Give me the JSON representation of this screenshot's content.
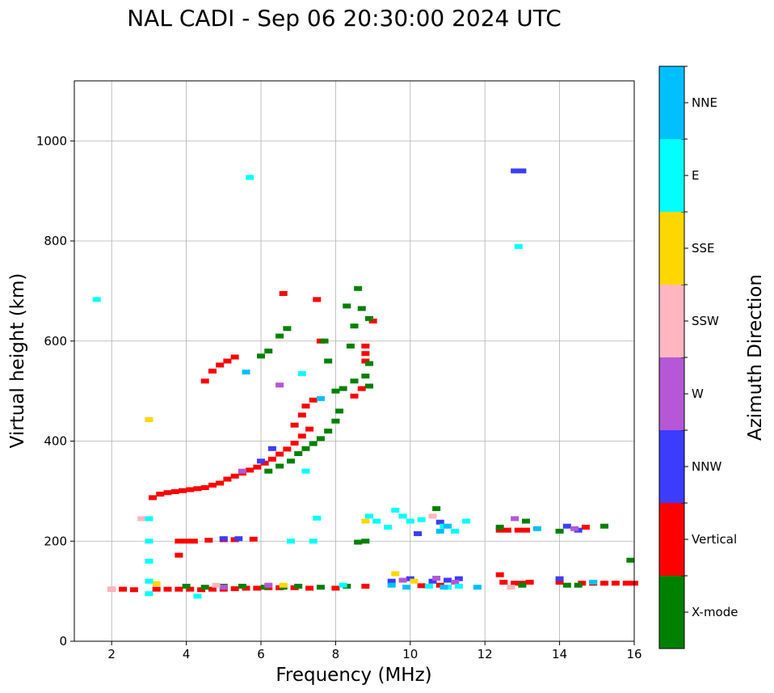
{
  "chart_data": {
    "type": "scatter",
    "title": "NAL CADI - Sep 06 20:30:00 2024 UTC",
    "xlabel": "Frequency (MHz)",
    "ylabel": "Virtual height (km)",
    "xlim": [
      1,
      16
    ],
    "ylim": [
      0,
      1120
    ],
    "xticks": [
      2,
      4,
      6,
      8,
      10,
      12,
      14,
      16
    ],
    "yticks": [
      0,
      200,
      400,
      600,
      800,
      1000
    ],
    "grid": true,
    "colorbar": {
      "label": "Azimuth Direction",
      "categories": [
        {
          "name": "X-mode",
          "color": "#008000"
        },
        {
          "name": "Vertical",
          "color": "#ff0000"
        },
        {
          "name": "NNW",
          "color": "#3c3cff"
        },
        {
          "name": "W",
          "color": "#b557d6"
        },
        {
          "name": "SSW",
          "color": "#ffb6c1"
        },
        {
          "name": "SSE",
          "color": "#ffd700"
        },
        {
          "name": "E",
          "color": "#00ffff"
        },
        {
          "name": "NNE",
          "color": "#00bfff"
        }
      ]
    },
    "series": [
      {
        "name": "Vertical",
        "points": [
          [
            2.0,
            104
          ],
          [
            2.3,
            104
          ],
          [
            2.6,
            103
          ],
          [
            3.2,
            104
          ],
          [
            3.5,
            104
          ],
          [
            3.8,
            104
          ],
          [
            4.1,
            104
          ],
          [
            4.4,
            103
          ],
          [
            4.7,
            104
          ],
          [
            5.0,
            104
          ],
          [
            5.3,
            105
          ],
          [
            5.6,
            106
          ],
          [
            5.9,
            106
          ],
          [
            6.2,
            107
          ],
          [
            6.5,
            107
          ],
          [
            6.9,
            107
          ],
          [
            7.3,
            106
          ],
          [
            8.0,
            106
          ],
          [
            8.8,
            110
          ],
          [
            10.3,
            111
          ],
          [
            10.8,
            112
          ],
          [
            12.4,
            133
          ],
          [
            12.5,
            118
          ],
          [
            12.8,
            116
          ],
          [
            13.0,
            116
          ],
          [
            13.2,
            118
          ],
          [
            14.0,
            118
          ],
          [
            14.6,
            116
          ],
          [
            14.9,
            116
          ],
          [
            15.2,
            116
          ],
          [
            15.5,
            116
          ],
          [
            15.8,
            116
          ],
          [
            16.0,
            116
          ],
          [
            3.8,
            200
          ],
          [
            4.0,
            200
          ],
          [
            4.2,
            200
          ],
          [
            4.6,
            202
          ],
          [
            5.0,
            203
          ],
          [
            5.3,
            203
          ],
          [
            5.8,
            204
          ],
          [
            3.8,
            172
          ],
          [
            3.1,
            287
          ],
          [
            3.3,
            294
          ],
          [
            3.5,
            297
          ],
          [
            3.7,
            299
          ],
          [
            3.9,
            301
          ],
          [
            4.1,
            303
          ],
          [
            4.3,
            305
          ],
          [
            4.5,
            307
          ],
          [
            4.7,
            312
          ],
          [
            4.9,
            316
          ],
          [
            5.1,
            324
          ],
          [
            5.3,
            330
          ],
          [
            5.5,
            336
          ],
          [
            5.7,
            342
          ],
          [
            5.9,
            348
          ],
          [
            6.1,
            356
          ],
          [
            6.3,
            364
          ],
          [
            6.5,
            374
          ],
          [
            6.7,
            384
          ],
          [
            6.9,
            396
          ],
          [
            7.1,
            410
          ],
          [
            7.3,
            424
          ],
          [
            4.5,
            520
          ],
          [
            4.7,
            540
          ],
          [
            4.9,
            552
          ],
          [
            5.1,
            560
          ],
          [
            5.3,
            568
          ],
          [
            6.6,
            695
          ],
          [
            7.5,
            683
          ],
          [
            7.6,
            600
          ],
          [
            7.2,
            470
          ],
          [
            7.4,
            482
          ],
          [
            6.9,
            432
          ],
          [
            7.1,
            452
          ],
          [
            8.8,
            590
          ],
          [
            8.8,
            575
          ],
          [
            8.8,
            560
          ],
          [
            9.0,
            640
          ],
          [
            8.5,
            490
          ],
          [
            8.7,
            505
          ],
          [
            12.4,
            222
          ],
          [
            12.6,
            222
          ],
          [
            12.9,
            222
          ],
          [
            13.1,
            222
          ],
          [
            14.7,
            228
          ]
        ]
      },
      {
        "name": "X-mode",
        "points": [
          [
            4.0,
            110
          ],
          [
            4.5,
            108
          ],
          [
            5.0,
            110
          ],
          [
            5.5,
            110
          ],
          [
            6.1,
            108
          ],
          [
            6.6,
            108
          ],
          [
            7.0,
            110
          ],
          [
            7.6,
            108
          ],
          [
            8.3,
            110
          ],
          [
            14.2,
            112
          ],
          [
            14.5,
            112
          ],
          [
            13.0,
            112
          ],
          [
            6.2,
            340
          ],
          [
            6.5,
            350
          ],
          [
            6.8,
            360
          ],
          [
            7.0,
            375
          ],
          [
            7.2,
            385
          ],
          [
            7.4,
            395
          ],
          [
            7.6,
            405
          ],
          [
            7.8,
            420
          ],
          [
            8.0,
            440
          ],
          [
            8.1,
            460
          ],
          [
            6.5,
            610
          ],
          [
            6.7,
            625
          ],
          [
            6.2,
            580
          ],
          [
            6.0,
            570
          ],
          [
            7.7,
            600
          ],
          [
            7.8,
            560
          ],
          [
            8.0,
            500
          ],
          [
            8.2,
            505
          ],
          [
            8.5,
            520
          ],
          [
            8.8,
            530
          ],
          [
            8.9,
            510
          ],
          [
            8.4,
            590
          ],
          [
            8.5,
            630
          ],
          [
            8.3,
            670
          ],
          [
            8.6,
            705
          ],
          [
            8.7,
            665
          ],
          [
            8.9,
            645
          ],
          [
            8.9,
            555
          ],
          [
            8.6,
            198
          ],
          [
            8.8,
            200
          ],
          [
            10.7,
            265
          ],
          [
            12.4,
            228
          ],
          [
            13.1,
            240
          ],
          [
            14.0,
            220
          ],
          [
            15.2,
            230
          ],
          [
            15.9,
            162
          ]
        ]
      },
      {
        "name": "NNW",
        "points": [
          [
            12.8,
            940
          ],
          [
            13.0,
            940
          ],
          [
            5.0,
            205
          ],
          [
            5.4,
            205
          ],
          [
            6.3,
            385
          ],
          [
            6.0,
            360
          ],
          [
            9.5,
            120
          ],
          [
            10.0,
            125
          ],
          [
            10.6,
            120
          ],
          [
            11.0,
            122
          ],
          [
            11.3,
            125
          ],
          [
            14.0,
            125
          ],
          [
            14.2,
            230
          ],
          [
            14.5,
            222
          ],
          [
            10.2,
            215
          ],
          [
            10.8,
            238
          ]
        ]
      },
      {
        "name": "W",
        "points": [
          [
            5.5,
            340
          ],
          [
            6.5,
            512
          ],
          [
            9.8,
            122
          ],
          [
            10.7,
            126
          ],
          [
            11.2,
            118
          ],
          [
            12.8,
            245
          ],
          [
            14.4,
            225
          ],
          [
            5.0,
            108
          ],
          [
            6.2,
            112
          ]
        ]
      },
      {
        "name": "SSW",
        "points": [
          [
            2.0,
            104
          ],
          [
            2.8,
            245
          ],
          [
            10.6,
            250
          ],
          [
            12.7,
            108
          ],
          [
            4.8,
            112
          ]
        ]
      },
      {
        "name": "SSE",
        "points": [
          [
            3.0,
            443
          ],
          [
            8.8,
            240
          ],
          [
            9.6,
            135
          ],
          [
            10.1,
            120
          ],
          [
            6.6,
            112
          ],
          [
            3.2,
            115
          ]
        ]
      },
      {
        "name": "E",
        "points": [
          [
            1.6,
            683
          ],
          [
            5.7,
            927
          ],
          [
            12.9,
            789
          ],
          [
            7.1,
            535
          ],
          [
            7.5,
            246
          ],
          [
            7.2,
            340
          ],
          [
            3.0,
            245
          ],
          [
            3.0,
            200
          ],
          [
            3.0,
            160
          ],
          [
            3.0,
            120
          ],
          [
            3.0,
            95
          ],
          [
            4.3,
            90
          ],
          [
            7.4,
            200
          ],
          [
            6.8,
            200
          ],
          [
            8.9,
            250
          ],
          [
            9.1,
            240
          ],
          [
            9.4,
            228
          ],
          [
            9.6,
            262
          ],
          [
            9.8,
            250
          ],
          [
            10.0,
            240
          ],
          [
            10.3,
            243
          ],
          [
            10.9,
            230
          ],
          [
            11.2,
            220
          ],
          [
            11.5,
            240
          ],
          [
            8.2,
            112
          ],
          [
            10.5,
            110
          ],
          [
            11.0,
            108
          ],
          [
            11.3,
            110
          ]
        ]
      },
      {
        "name": "NNE",
        "points": [
          [
            5.6,
            538
          ],
          [
            7.6,
            485
          ],
          [
            10.8,
            220
          ],
          [
            11.0,
            230
          ],
          [
            9.5,
            112
          ],
          [
            9.9,
            108
          ],
          [
            10.9,
            108
          ],
          [
            11.8,
            108
          ],
          [
            13.4,
            225
          ],
          [
            14.9,
            118
          ]
        ]
      }
    ]
  }
}
